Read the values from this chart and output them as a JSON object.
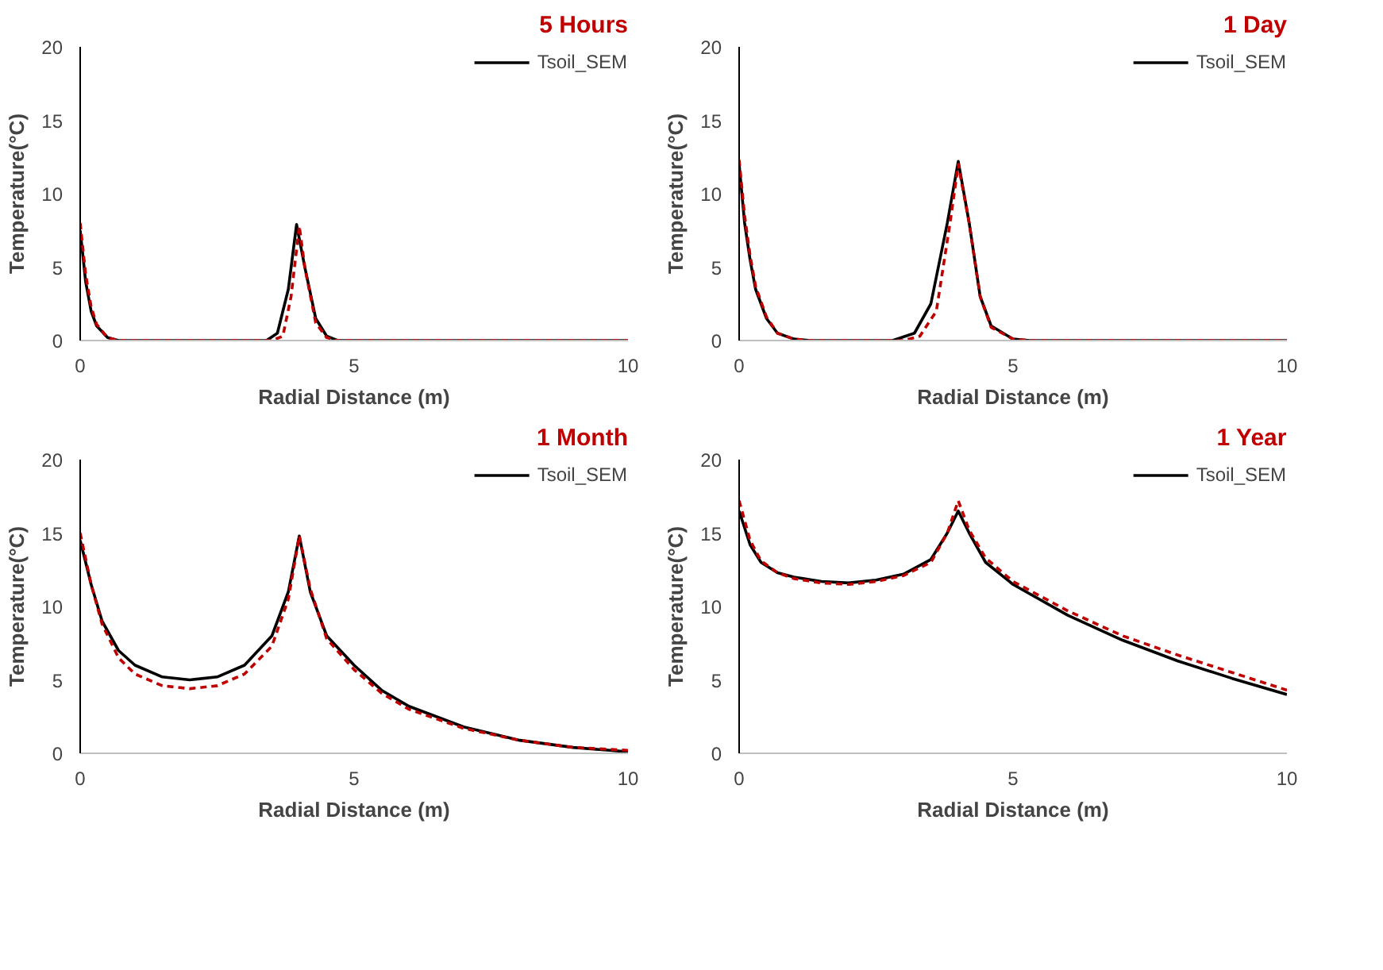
{
  "chart_data": [
    {
      "type": "line",
      "title": "5 Hours",
      "xlabel": "Radial Distance (m)",
      "ylabel": "Temperature(°C)",
      "xlim": [
        0,
        10
      ],
      "ylim": [
        0,
        20
      ],
      "xticks": [
        0,
        5,
        10
      ],
      "yticks": [
        0,
        5,
        10,
        15,
        20
      ],
      "grid": false,
      "legend": "top right",
      "series": [
        {
          "name": "Tsoil_SEM",
          "color": "#000000",
          "line_style": "solid",
          "x": [
            0,
            0.1,
            0.2,
            0.3,
            0.5,
            0.7,
            3.4,
            3.6,
            3.8,
            3.95,
            4.1,
            4.3,
            4.5,
            4.7,
            10
          ],
          "values": [
            7.5,
            4,
            2,
            1,
            0.2,
            0,
            0,
            0.5,
            3.5,
            7.9,
            5,
            1.5,
            0.3,
            0,
            0
          ]
        },
        {
          "color": "#c00000",
          "line_style": "dashed",
          "x": [
            0,
            0.1,
            0.2,
            0.3,
            0.5,
            0.7,
            3.5,
            3.7,
            3.85,
            4,
            4.1,
            4.3,
            4.5,
            4.7,
            10
          ],
          "values": [
            8,
            4.5,
            2.3,
            1.1,
            0.2,
            0,
            0,
            0.3,
            3,
            7.8,
            5,
            1.2,
            0.2,
            0,
            0
          ]
        }
      ]
    },
    {
      "type": "line",
      "title": "1 Day",
      "xlabel": "Radial Distance (m)",
      "ylabel": "Temperature(°C)",
      "xlim": [
        0,
        10
      ],
      "ylim": [
        0,
        20
      ],
      "xticks": [
        0,
        5,
        10
      ],
      "yticks": [
        0,
        5,
        10,
        15,
        20
      ],
      "grid": false,
      "legend": "top right",
      "series": [
        {
          "name": "Tsoil_SEM",
          "color": "#000000",
          "line_style": "solid",
          "x": [
            0,
            0.1,
            0.2,
            0.3,
            0.5,
            0.7,
            1,
            1.3,
            2.8,
            3.2,
            3.5,
            3.8,
            4,
            4.2,
            4.4,
            4.6,
            5,
            5.3,
            10
          ],
          "values": [
            12,
            8,
            5.5,
            3.5,
            1.5,
            0.5,
            0.1,
            0,
            0,
            0.5,
            2.5,
            8,
            12.2,
            8,
            3,
            1,
            0.1,
            0,
            0
          ]
        },
        {
          "color": "#c00000",
          "line_style": "dashed",
          "x": [
            0,
            0.1,
            0.2,
            0.3,
            0.5,
            0.7,
            1,
            1.3,
            3,
            3.3,
            3.6,
            3.85,
            4,
            4.2,
            4.4,
            4.6,
            5,
            5.3,
            10
          ],
          "values": [
            12.3,
            8.5,
            5.8,
            3.7,
            1.6,
            0.5,
            0.1,
            0,
            0,
            0.3,
            2,
            8,
            12,
            8,
            3,
            0.9,
            0.1,
            0,
            0
          ]
        }
      ]
    },
    {
      "type": "line",
      "title": "1 Month",
      "xlabel": "Radial Distance (m)",
      "ylabel": "Temperature(°C)",
      "xlim": [
        0,
        10
      ],
      "ylim": [
        0,
        20
      ],
      "xticks": [
        0,
        5,
        10
      ],
      "yticks": [
        0,
        5,
        10,
        15,
        20
      ],
      "grid": false,
      "legend": "top right",
      "series": [
        {
          "name": "Tsoil_SEM",
          "color": "#000000",
          "line_style": "solid",
          "x": [
            0,
            0.2,
            0.4,
            0.7,
            1,
            1.5,
            2,
            2.5,
            3,
            3.5,
            3.8,
            4,
            4.2,
            4.5,
            5,
            5.5,
            6,
            7,
            8,
            9,
            10
          ],
          "values": [
            14.5,
            11.5,
            9,
            7,
            6,
            5.2,
            5,
            5.2,
            6,
            8,
            11,
            14.8,
            11,
            8,
            6,
            4.3,
            3.2,
            1.8,
            0.9,
            0.4,
            0.1
          ]
        },
        {
          "color": "#c00000",
          "line_style": "dashed",
          "x": [
            0,
            0.2,
            0.4,
            0.7,
            1,
            1.5,
            2,
            2.5,
            3,
            3.5,
            3.8,
            4,
            4.2,
            4.5,
            5,
            5.5,
            6,
            7,
            8,
            9,
            10
          ],
          "values": [
            15,
            11.5,
            8.8,
            6.5,
            5.4,
            4.6,
            4.4,
            4.6,
            5.4,
            7.3,
            10.5,
            14.8,
            11.2,
            7.8,
            5.7,
            4.1,
            3,
            1.7,
            0.9,
            0.4,
            0.2
          ]
        }
      ]
    },
    {
      "type": "line",
      "title": "1 Year",
      "xlabel": "Radial Distance (m)",
      "ylabel": "Temperature(°C)",
      "xlim": [
        0,
        10
      ],
      "ylim": [
        0,
        20
      ],
      "xticks": [
        0,
        5,
        10
      ],
      "yticks": [
        0,
        5,
        10,
        15,
        20
      ],
      "grid": false,
      "legend": "top right",
      "series": [
        {
          "name": "Tsoil_SEM",
          "color": "#000000",
          "line_style": "solid",
          "x": [
            0,
            0.2,
            0.4,
            0.7,
            1,
            1.5,
            2,
            2.5,
            3,
            3.5,
            3.8,
            4,
            4.2,
            4.5,
            5,
            6,
            7,
            8,
            9,
            10
          ],
          "values": [
            16.5,
            14.2,
            13,
            12.3,
            12,
            11.7,
            11.6,
            11.8,
            12.2,
            13.2,
            15,
            16.5,
            15,
            13,
            11.5,
            9.4,
            7.7,
            6.3,
            5.1,
            4
          ]
        },
        {
          "color": "#c00000",
          "line_style": "dashed",
          "x": [
            0,
            0.2,
            0.4,
            0.7,
            1,
            1.5,
            2,
            2.5,
            3,
            3.5,
            3.8,
            4,
            4.2,
            4.5,
            5,
            6,
            7,
            8,
            9,
            10
          ],
          "values": [
            17.2,
            14.5,
            13.1,
            12.3,
            11.9,
            11.6,
            11.5,
            11.7,
            12.1,
            13,
            15,
            17.2,
            15.2,
            13.3,
            11.7,
            9.7,
            8,
            6.7,
            5.5,
            4.3
          ]
        }
      ]
    }
  ]
}
